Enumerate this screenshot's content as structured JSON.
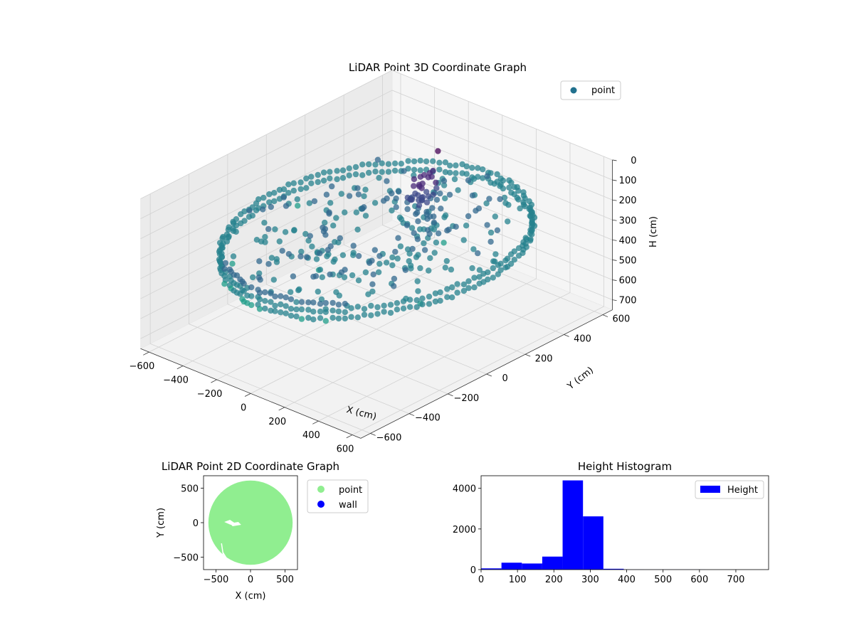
{
  "chart_data": [
    {
      "type": "scatter3d",
      "title": "LiDAR Point 3D Coordinate Graph",
      "xlabel": "X (cm)",
      "ylabel": "Y (cm)",
      "zlabel": "H (cm)",
      "xticks": [
        -600,
        -400,
        -200,
        0,
        200,
        400,
        600
      ],
      "yticks": [
        -600,
        -400,
        -200,
        0,
        200,
        400,
        600
      ],
      "zticks": [
        0,
        100,
        200,
        300,
        400,
        500,
        600,
        700
      ],
      "xlim": [
        -650,
        650
      ],
      "ylim": [
        -650,
        650
      ],
      "zlim": [
        0,
        750
      ],
      "zaxis_inverted": true,
      "grid": true,
      "legend": {
        "position": "top-right",
        "entries": [
          {
            "label": "point",
            "color": "#21718e"
          }
        ]
      },
      "colormap": "viridis",
      "description_of_points": "ring of points at radius ~600 cm, heights ~250-330 cm, with inner scattered clusters and a dark purple column near (50, 150)"
    },
    {
      "type": "scatter",
      "title": "LiDAR Point 2D Coordinate Graph",
      "xlabel": "X (cm)",
      "ylabel": "Y (cm)",
      "xticks": [
        -500,
        0,
        500
      ],
      "yticks": [
        -500,
        0,
        500
      ],
      "xlim": [
        -680,
        680
      ],
      "ylim": [
        -680,
        680
      ],
      "legend": {
        "position": "outside-right",
        "entries": [
          {
            "label": "point",
            "color": "#90ee90"
          },
          {
            "label": "wall",
            "color": "#0000ff"
          }
        ]
      },
      "region": {
        "shape": "disk",
        "center": [
          0,
          0
        ],
        "radius": 610,
        "color": "#90ee90"
      }
    },
    {
      "type": "bar",
      "title": "Height Histogram",
      "series": [
        {
          "name": "Height",
          "color": "#0000ff"
        }
      ],
      "bins": [
        {
          "x0": 0,
          "x1": 56,
          "count": 60
        },
        {
          "x0": 56,
          "x1": 112,
          "count": 340
        },
        {
          "x0": 112,
          "x1": 168,
          "count": 300
        },
        {
          "x0": 168,
          "x1": 224,
          "count": 640
        },
        {
          "x0": 224,
          "x1": 280,
          "count": 4390
        },
        {
          "x0": 280,
          "x1": 336,
          "count": 2620
        },
        {
          "x0": 336,
          "x1": 392,
          "count": 40
        },
        {
          "x0": 392,
          "x1": 448,
          "count": 5
        },
        {
          "x0": 448,
          "x1": 504,
          "count": 3
        },
        {
          "x0": 504,
          "x1": 560,
          "count": 2
        },
        {
          "x0": 560,
          "x1": 616,
          "count": 2
        },
        {
          "x0": 616,
          "x1": 672,
          "count": 1
        },
        {
          "x0": 672,
          "x1": 728,
          "count": 1
        },
        {
          "x0": 728,
          "x1": 784,
          "count": 1
        }
      ],
      "xticks": [
        0,
        100,
        200,
        300,
        400,
        500,
        600,
        700
      ],
      "yticks": [
        0,
        2000,
        4000
      ],
      "xlim": [
        0,
        790
      ],
      "ylim": [
        0,
        4620
      ],
      "legend": {
        "position": "top-right",
        "entries": [
          {
            "label": "Height",
            "color": "#0000ff"
          }
        ]
      }
    }
  ]
}
